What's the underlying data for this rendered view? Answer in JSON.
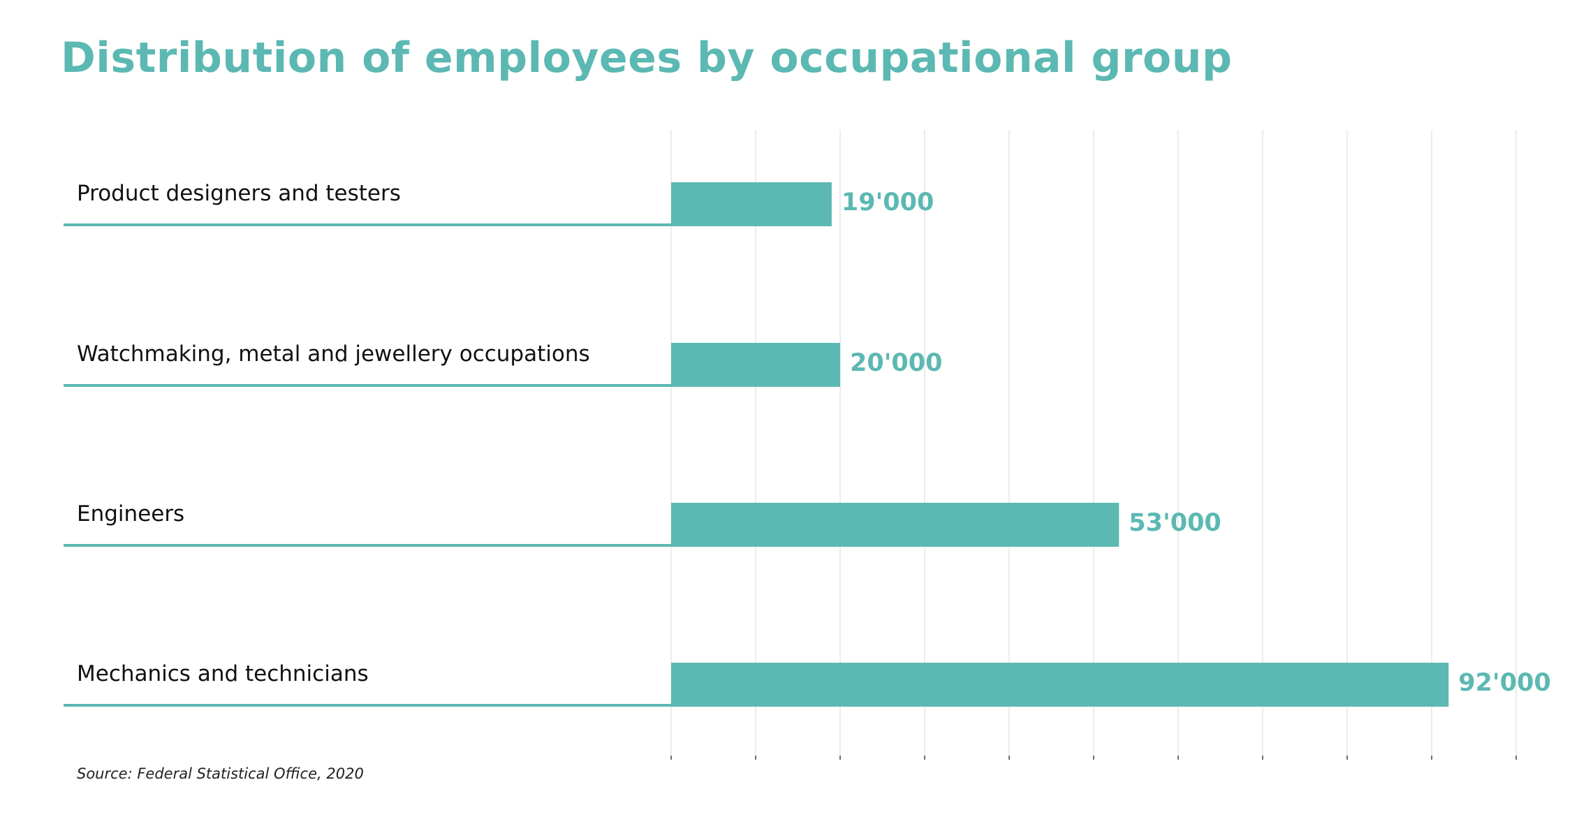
{
  "chart_data": {
    "type": "bar",
    "orientation": "horizontal",
    "title": "Distribution of employees by occupational group",
    "categories": [
      "Product designers and testers",
      "Watchmaking, metal and jewellery occupations",
      "Engineers",
      "Mechanics and technicians"
    ],
    "values": [
      19000,
      20000,
      53000,
      92000
    ],
    "value_labels": [
      "19'000",
      "20'000",
      "53'000",
      "92'000"
    ],
    "xlim": [
      0,
      100000
    ],
    "grid": true,
    "xlabel": "",
    "ylabel": "",
    "bar_color": "#5cb8b2",
    "title_color": "#5cb8b2"
  },
  "source": "Source: Federal Statistical Office, 2020"
}
